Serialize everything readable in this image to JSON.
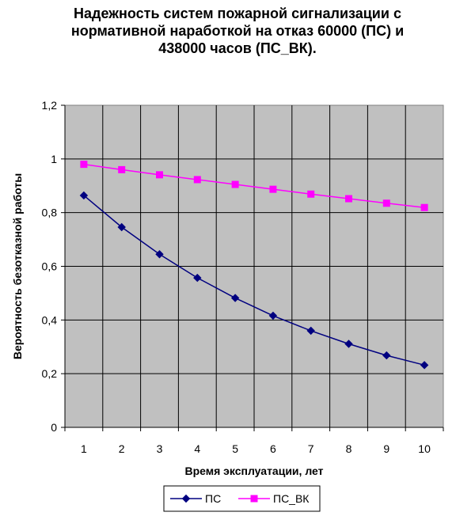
{
  "chart_data": {
    "type": "line",
    "title_lines": [
      "Надежность систем пожарной сигнализации с",
      "нормативной наработкой на отказ 60000 (ПС) и",
      "438000 часов (ПС_ВК)."
    ],
    "xlabel": "Время эксплуатации,  лет",
    "ylabel": "Вероятность  безотказной работы",
    "x": [
      1,
      2,
      3,
      4,
      5,
      6,
      7,
      8,
      9,
      10
    ],
    "ylim": [
      0,
      1.2
    ],
    "yticks": [
      "0",
      "0,2",
      "0,4",
      "0,6",
      "0,8",
      "1",
      "1,2"
    ],
    "grid": true,
    "legend_position": "bottom",
    "series": [
      {
        "name": "ПС",
        "color": "#000080",
        "marker": "diamond",
        "values": [
          0.864,
          0.746,
          0.645,
          0.557,
          0.482,
          0.416,
          0.36,
          0.311,
          0.268,
          0.232
        ]
      },
      {
        "name": "ПС_ВК",
        "color": "#ff00ff",
        "marker": "square",
        "values": [
          0.98,
          0.96,
          0.941,
          0.923,
          0.905,
          0.887,
          0.869,
          0.852,
          0.835,
          0.819
        ]
      }
    ],
    "plot_background": "#c0c0c0"
  }
}
